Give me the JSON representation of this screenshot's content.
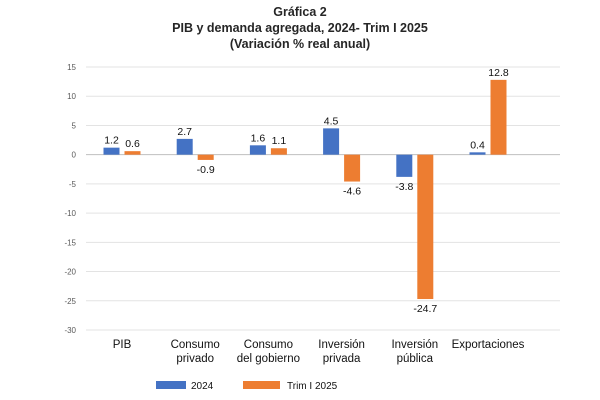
{
  "chart_data": {
    "type": "bar",
    "title": "Gráfica 2",
    "subtitle": "PIB y demanda agregada, 2024- Trim I 2025",
    "subtitle2": "(Variación % real anual)",
    "xlabel": "",
    "ylabel": "",
    "ylim": [
      -30,
      15
    ],
    "yticks": [
      15,
      10,
      5,
      0,
      -5,
      -10,
      -15,
      -20,
      -25,
      -30
    ],
    "grid": true,
    "legend_position": "bottom",
    "categories": [
      [
        "PIB"
      ],
      [
        "Consumo",
        "privado"
      ],
      [
        "Consumo",
        "del gobierno"
      ],
      [
        "Inversión",
        "privada"
      ],
      [
        "Inversión",
        "pública"
      ],
      [
        "Exportaciones"
      ]
    ],
    "series": [
      {
        "name": "2024",
        "color": "#4472C4",
        "values": [
          1.2,
          2.7,
          1.6,
          4.5,
          -3.8,
          0.4
        ],
        "labels": [
          "1.2",
          "2.7",
          "1.6",
          "4.5",
          "-3.8",
          "0.4"
        ]
      },
      {
        "name": "Trim I 2025",
        "color": "#ED7D31",
        "values": [
          0.6,
          -0.9,
          1.1,
          -4.6,
          -24.7,
          12.8
        ],
        "labels": [
          "0.6",
          "-0.9",
          "1.1",
          "-4.6",
          "-24.7",
          "12.8"
        ]
      }
    ]
  }
}
